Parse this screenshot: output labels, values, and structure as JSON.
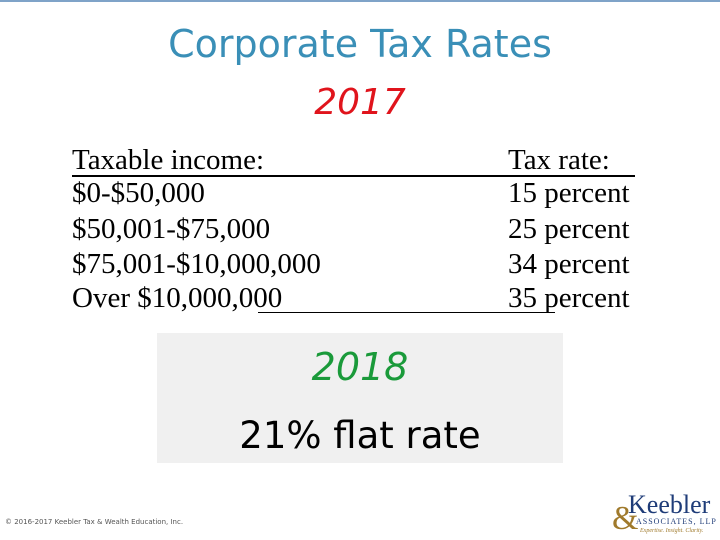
{
  "header": {
    "title": "Corporate Tax Rates",
    "year": "2017"
  },
  "table": {
    "columns": [
      "Taxable income:",
      "Tax rate:"
    ],
    "rows": [
      [
        "$0-$50,000",
        "15 percent"
      ],
      [
        "$50,001-$75,000",
        "25 percent"
      ],
      [
        "$75,001-$10,000,000",
        "34 percent"
      ],
      [
        "Over $10,000,000",
        "35 percent"
      ]
    ]
  },
  "callout": {
    "year": "2018",
    "text": "21% flat rate"
  },
  "footer": {
    "copyright": "© 2016-2017 Keebler Tax & Wealth Education, Inc."
  },
  "logo": {
    "name": "Keebler",
    "ampersand": "&",
    "subtitle": "ASSOCIATES, LLP",
    "tagline": "Expertise. Insight. Clarity."
  }
}
